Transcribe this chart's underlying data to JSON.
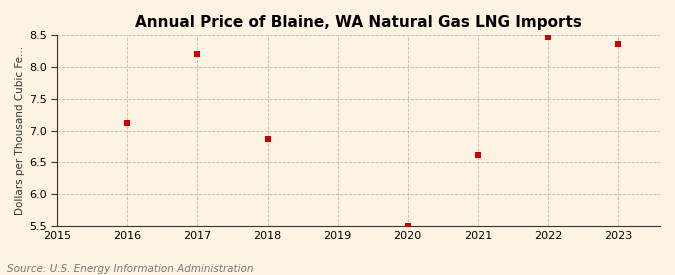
{
  "title": "Annual Price of Blaine, WA Natural Gas LNG Imports",
  "ylabel": "Dollars per Thousand Cubic Fe...",
  "source": "Source: U.S. Energy Information Administration",
  "years": [
    2016,
    2017,
    2018,
    2020,
    2021,
    2022,
    2023
  ],
  "values": [
    7.12,
    8.2,
    6.87,
    5.5,
    6.62,
    8.47,
    8.37
  ],
  "marker_color": "#cc0000",
  "marker_style": "s",
  "marker_size": 4,
  "xlim": [
    2015,
    2023.6
  ],
  "ylim": [
    5.5,
    8.5
  ],
  "yticks": [
    5.5,
    6.0,
    6.5,
    7.0,
    7.5,
    8.0,
    8.5
  ],
  "xticks": [
    2015,
    2016,
    2017,
    2018,
    2019,
    2020,
    2021,
    2022,
    2023
  ],
  "background_color": "#fdf3e3",
  "grid_color": "#bbbbbb",
  "spine_color": "#333333",
  "title_fontsize": 11,
  "label_fontsize": 7.5,
  "tick_fontsize": 8,
  "source_fontsize": 7.5
}
